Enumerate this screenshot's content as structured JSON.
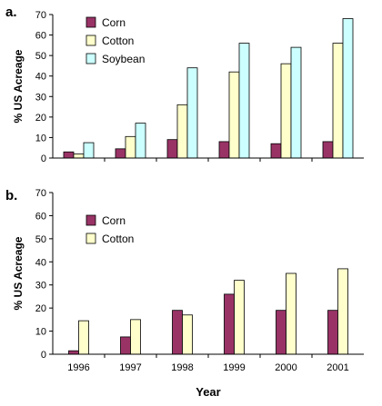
{
  "figure": {
    "xlabel": "Year"
  },
  "chart_data": [
    {
      "type": "bar",
      "panel_label": "a.",
      "ylabel": "% US Acreage",
      "ylim": [
        0,
        70
      ],
      "yticks": [
        0,
        10,
        20,
        30,
        40,
        50,
        60,
        70
      ],
      "categories": [
        "1996",
        "1997",
        "1998",
        "1999",
        "2000",
        "2001"
      ],
      "legend_position": "top-left",
      "grid": false,
      "series": [
        {
          "name": "Corn",
          "color": "#993366",
          "values": [
            3,
            4.5,
            9,
            8,
            7,
            8
          ]
        },
        {
          "name": "Cotton",
          "color": "#FFFFCC",
          "values": [
            2,
            10.5,
            26,
            42,
            46,
            56
          ]
        },
        {
          "name": "Soybean",
          "color": "#CCFFFF",
          "values": [
            7.5,
            17,
            44,
            56,
            54,
            68
          ]
        }
      ]
    },
    {
      "type": "bar",
      "panel_label": "b.",
      "ylabel": "% US Acreage",
      "ylim": [
        0,
        70
      ],
      "yticks": [
        0,
        10,
        20,
        30,
        40,
        50,
        60,
        70
      ],
      "categories": [
        "1996",
        "1997",
        "1998",
        "1999",
        "2000",
        "2001"
      ],
      "legend_position": "top-left",
      "grid": false,
      "series": [
        {
          "name": "Corn",
          "color": "#993366",
          "values": [
            1.5,
            7.5,
            19,
            26,
            19,
            19
          ]
        },
        {
          "name": "Cotton",
          "color": "#FFFFCC",
          "values": [
            14.5,
            15,
            17,
            32,
            35,
            37
          ]
        }
      ]
    }
  ]
}
